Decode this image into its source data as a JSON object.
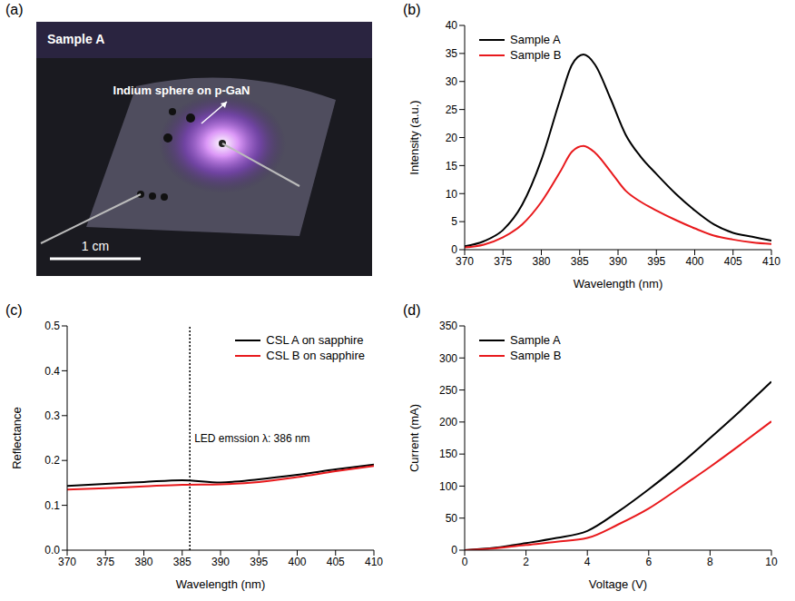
{
  "photo": {
    "panel": "(a)",
    "title": "Sample A",
    "annotation": "Indium sphere on p-GaN",
    "scale_bar": "1 cm"
  },
  "chart_data": [
    {
      "panel": "(b)",
      "type": "line",
      "x_label": "Wavelength (nm)",
      "y_label": "Intensity (a.u.)",
      "x": [
        370,
        372.5,
        375,
        377.5,
        380,
        382.5,
        384,
        385.5,
        387,
        389,
        391,
        393,
        395,
        397.5,
        400,
        402.5,
        405,
        407.5,
        410
      ],
      "series": [
        {
          "name": "Sample A",
          "color": "#000000",
          "values": [
            0.6,
            1.5,
            3.5,
            8,
            16,
            27,
            33,
            34.8,
            33,
            27,
            20.5,
            16.5,
            13.5,
            10,
            7,
            4.5,
            3,
            2.3,
            1.6
          ]
        },
        {
          "name": "Sample B",
          "color": "#e8191c",
          "values": [
            0.4,
            0.9,
            2.2,
            4.5,
            8.5,
            14,
            17.5,
            18.5,
            17.3,
            14,
            10.5,
            8.5,
            7,
            5.3,
            3.8,
            2.5,
            1.8,
            1.3,
            1.0
          ]
        }
      ],
      "xlim": [
        370,
        410
      ],
      "xticks": [
        370,
        375,
        380,
        385,
        390,
        395,
        400,
        405,
        410
      ],
      "ylim": [
        0,
        40
      ],
      "yticks": [
        0,
        5,
        10,
        15,
        20,
        25,
        30,
        35,
        40
      ],
      "legend": "top-left"
    },
    {
      "panel": "(c)",
      "type": "line",
      "x_label": "Wavelength (nm)",
      "y_label": "Reflectance",
      "x": [
        370,
        375,
        380,
        385,
        390,
        395,
        400,
        405,
        410
      ],
      "series": [
        {
          "name": "CSL A on sapphire",
          "color": "#000000",
          "values": [
            0.143,
            0.148,
            0.152,
            0.156,
            0.151,
            0.158,
            0.168,
            0.18,
            0.191
          ]
        },
        {
          "name": "CSL B on sapphire",
          "color": "#e8191c",
          "values": [
            0.135,
            0.138,
            0.142,
            0.146,
            0.147,
            0.152,
            0.163,
            0.176,
            0.188
          ]
        }
      ],
      "xlim": [
        370,
        410
      ],
      "xticks": [
        370,
        375,
        380,
        385,
        390,
        395,
        400,
        405,
        410
      ],
      "ylim": [
        0,
        0.5
      ],
      "yticks": [
        {
          "value": 0,
          "label": "0.0"
        },
        0.1,
        0.2,
        0.3,
        0.4,
        0.5
      ],
      "legend": "top-right",
      "annotation": {
        "text": "LED emssion λ: 386 nm",
        "x": 386
      }
    },
    {
      "panel": "(d)",
      "type": "line",
      "x_label": "Voltage (V)",
      "y_label": "Current (mA)",
      "x": [
        0,
        1,
        2,
        3,
        4,
        5,
        6,
        7,
        8,
        9,
        10
      ],
      "series": [
        {
          "name": "Sample A",
          "color": "#000000",
          "values": [
            0,
            4,
            11,
            19,
            30,
            60,
            95,
            133,
            175,
            218,
            263
          ]
        },
        {
          "name": "Sample B",
          "color": "#e8191c",
          "values": [
            0,
            3,
            8,
            13,
            19,
            40,
            65,
            97,
            130,
            165,
            201
          ]
        }
      ],
      "xlim": [
        0,
        10
      ],
      "xticks": [
        0,
        2,
        4,
        6,
        8,
        10
      ],
      "ylim": [
        0,
        350
      ],
      "yticks": [
        0,
        50,
        100,
        150,
        200,
        250,
        300,
        350
      ],
      "legend": "top-left"
    }
  ]
}
